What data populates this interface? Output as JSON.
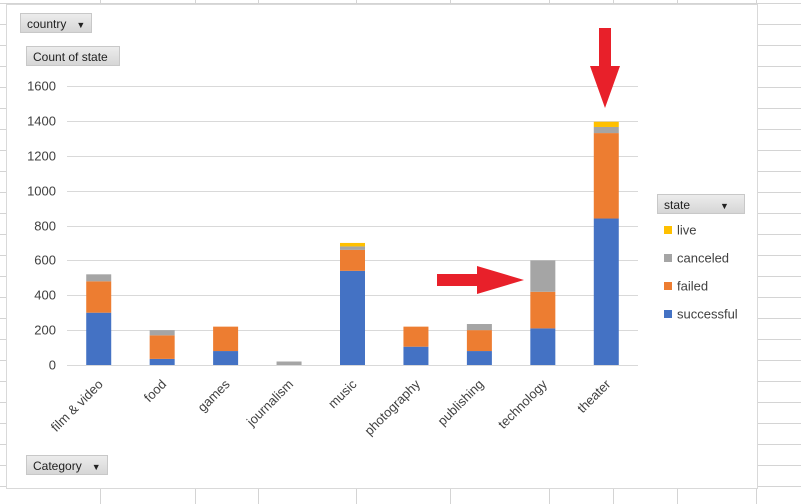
{
  "filters": {
    "country_label": "country",
    "value_label": "Count  of state",
    "category_label": "Category",
    "legend_label": "state"
  },
  "icons": {
    "dropdown": "dropdown-arrow-icon",
    "annotation": "red-arrow-icon"
  },
  "colors": {
    "successful": "#4472c4",
    "failed": "#ed7d31",
    "canceled": "#a5a5a5",
    "live": "#ffc000",
    "arrow": "#e8202a"
  },
  "chart_data": {
    "type": "bar",
    "stacked": true,
    "categories": [
      "film & video",
      "food",
      "games",
      "journalism",
      "music",
      "photography",
      "publishing",
      "technology",
      "theater"
    ],
    "series": [
      {
        "name": "successful",
        "values": [
          300,
          35,
          80,
          0,
          540,
          105,
          80,
          210,
          840
        ]
      },
      {
        "name": "failed",
        "values": [
          180,
          135,
          140,
          0,
          120,
          115,
          120,
          210,
          490
        ]
      },
      {
        "name": "canceled",
        "values": [
          40,
          30,
          0,
          20,
          20,
          0,
          35,
          180,
          35
        ]
      },
      {
        "name": "live",
        "values": [
          0,
          0,
          0,
          0,
          20,
          0,
          0,
          0,
          30
        ]
      }
    ],
    "y_ticks": [
      "0",
      "200",
      "400",
      "600",
      "800",
      "1000",
      "1200",
      "1400",
      "1600"
    ],
    "ylim": [
      0,
      1600
    ],
    "grid": true,
    "legend_position": "right"
  }
}
